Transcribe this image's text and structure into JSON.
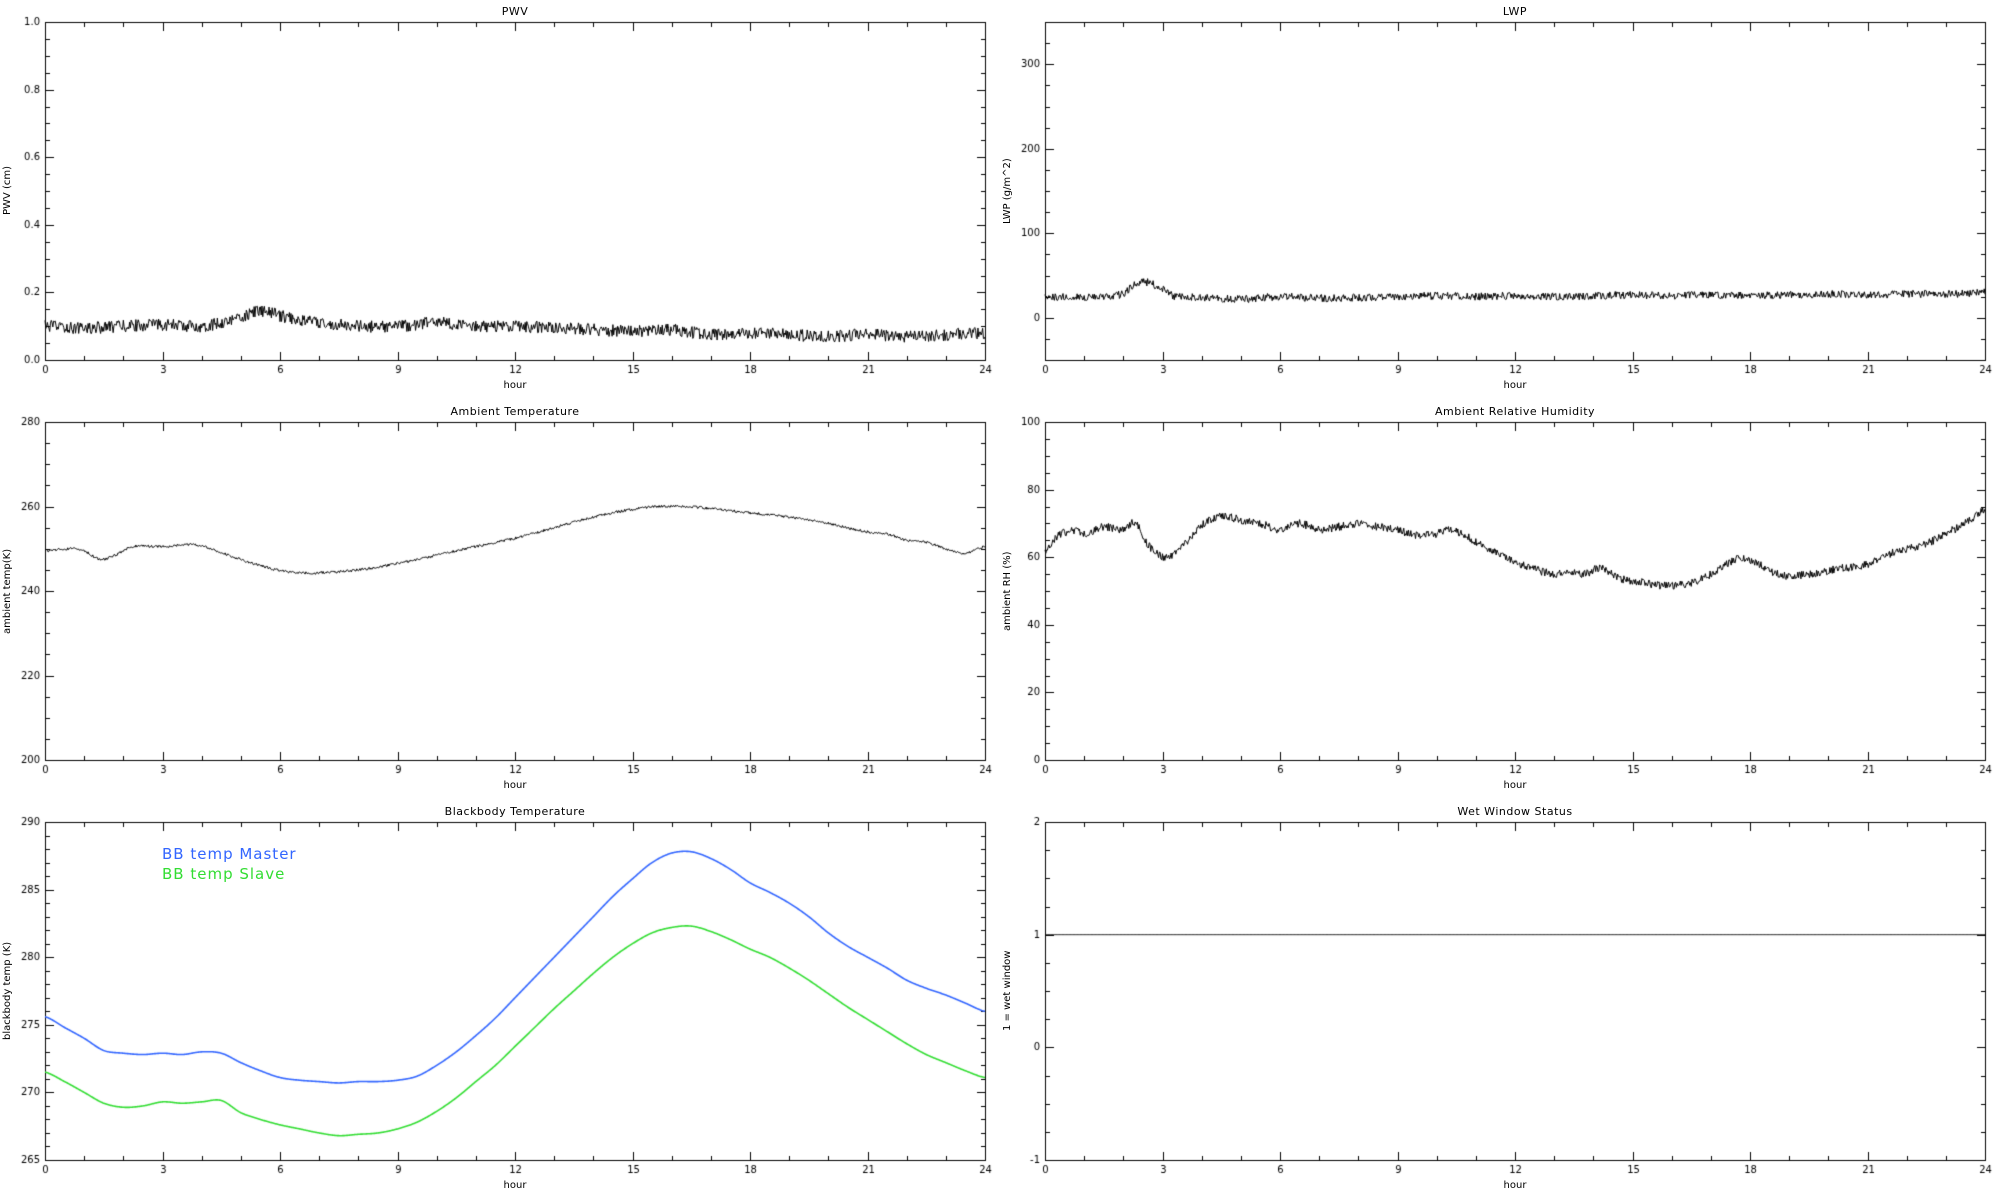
{
  "page": {
    "background": "#ffffff"
  },
  "chart_data": [
    {
      "type": "line",
      "title": "PWV",
      "xlabel": "hour",
      "ylabel": "PWV (cm)",
      "xlim": [
        0,
        24
      ],
      "ylim": [
        0,
        1
      ],
      "x_major": 3,
      "x_minor": 1,
      "y_major": 0.2,
      "y_minor": 0.05,
      "y_decimals": 1,
      "grid": false,
      "legend": false,
      "series": [
        {
          "name": "PWV",
          "color": "#000000",
          "noise": 0.018,
          "x": [
            0,
            1,
            2,
            3,
            4,
            5,
            5.5,
            6,
            7,
            8,
            9,
            10,
            11,
            12,
            13,
            14,
            15,
            16,
            17,
            18,
            19,
            20,
            21,
            22,
            23,
            24
          ],
          "y": [
            0.1,
            0.095,
            0.1,
            0.105,
            0.1,
            0.125,
            0.145,
            0.13,
            0.11,
            0.1,
            0.1,
            0.11,
            0.1,
            0.1,
            0.095,
            0.09,
            0.085,
            0.09,
            0.075,
            0.08,
            0.075,
            0.07,
            0.075,
            0.07,
            0.075,
            0.08
          ]
        }
      ]
    },
    {
      "type": "line",
      "title": "LWP",
      "xlabel": "hour",
      "ylabel": "LWP (g/m^2)",
      "xlim": [
        0,
        24
      ],
      "ylim": [
        -50,
        350
      ],
      "x_major": 3,
      "x_minor": 1,
      "y_major": 100,
      "y_minor": 25,
      "y_decimals": 0,
      "grid": false,
      "legend": false,
      "series": [
        {
          "name": "LWP",
          "color": "#000000",
          "noise": 4.5,
          "x": [
            0,
            1,
            2,
            2.3,
            2.6,
            3,
            3.3,
            4,
            5,
            6,
            7,
            8,
            9,
            10,
            11,
            12,
            13,
            14,
            15,
            16,
            17,
            18,
            19,
            20,
            21,
            22,
            23,
            24
          ],
          "y": [
            25,
            24,
            28,
            40,
            42,
            34,
            25,
            24,
            22,
            25,
            23,
            24,
            25,
            26,
            25,
            26,
            25,
            26,
            27,
            26,
            27,
            26,
            27,
            28,
            27,
            28,
            28,
            30
          ]
        }
      ]
    },
    {
      "type": "line",
      "title": "Ambient Temperature",
      "xlabel": "hour",
      "ylabel": "ambient temp(K)",
      "xlim": [
        0,
        24
      ],
      "ylim": [
        200,
        280
      ],
      "x_major": 3,
      "x_minor": 1,
      "y_major": 20,
      "y_minor": 5,
      "y_decimals": 0,
      "grid": false,
      "legend": false,
      "series": [
        {
          "name": "ambient temperature",
          "color": "#000000",
          "noise": 0.3,
          "x": [
            0,
            0.7,
            1,
            1.4,
            1.8,
            2.2,
            3,
            3.8,
            4.2,
            5,
            5.5,
            6,
            6.5,
            7,
            8,
            9,
            10,
            11,
            12,
            13,
            14,
            15,
            15.7,
            16.3,
            17,
            18,
            19,
            20,
            21,
            21.5,
            22,
            22.5,
            23,
            23.5,
            24
          ],
          "y": [
            249.5,
            250,
            249.5,
            247.5,
            248.5,
            250.5,
            250.5,
            251,
            250,
            247.5,
            246,
            244.8,
            244.3,
            244.3,
            245,
            246.5,
            248.5,
            250.5,
            252.5,
            255,
            257.5,
            259.3,
            260,
            260,
            259.5,
            258.5,
            257.5,
            256,
            254,
            253.5,
            252,
            251.5,
            250,
            249,
            250.5
          ]
        }
      ]
    },
    {
      "type": "line",
      "title": "Ambient Relative Humidity",
      "xlabel": "hour",
      "ylabel": "ambient RH (%)",
      "xlim": [
        0,
        24
      ],
      "ylim": [
        0,
        100
      ],
      "x_major": 3,
      "x_minor": 1,
      "y_major": 20,
      "y_minor": 5,
      "y_decimals": 0,
      "grid": false,
      "legend": false,
      "series": [
        {
          "name": "ambient RH",
          "color": "#000000",
          "noise": 1.2,
          "x": [
            0,
            0.3,
            0.7,
            1,
            1.5,
            2,
            2.3,
            2.6,
            3,
            3.4,
            3.8,
            4.2,
            4.6,
            5,
            5.5,
            6,
            6.5,
            7,
            7.5,
            8,
            8.5,
            9,
            9.5,
            10,
            10.4,
            10.8,
            11.2,
            11.6,
            12,
            12.5,
            13,
            13.4,
            13.8,
            14.2,
            14.6,
            15,
            15.5,
            16,
            16.5,
            17,
            17.4,
            17.8,
            18.2,
            18.6,
            19,
            19.5,
            20,
            20.5,
            21,
            21.4,
            21.8,
            22.2,
            22.6,
            23,
            23.5,
            24
          ],
          "y": [
            62,
            66,
            68,
            67,
            69,
            68,
            70,
            64,
            60,
            62,
            67,
            71,
            72,
            71,
            70,
            68,
            70,
            68,
            69,
            70,
            69,
            68,
            66.5,
            67,
            68,
            66,
            63,
            61,
            58.5,
            56.5,
            55,
            56,
            55,
            57,
            54,
            53,
            52,
            51.5,
            52.5,
            55,
            58,
            60,
            58,
            55.5,
            54.5,
            55,
            56,
            57,
            58,
            60,
            62,
            63,
            64.5,
            67,
            70,
            74
          ]
        }
      ]
    },
    {
      "type": "line",
      "title": "Blackbody Temperature",
      "xlabel": "hour",
      "ylabel": "blackbody temp (K)",
      "xlim": [
        0,
        24
      ],
      "ylim": [
        265,
        290
      ],
      "x_major": 3,
      "x_minor": 1,
      "y_major": 5,
      "y_minor": 1,
      "y_decimals": 0,
      "grid": false,
      "legend": true,
      "x": [
        0,
        0.5,
        1,
        1.5,
        2,
        2.5,
        3,
        3.5,
        4,
        4.5,
        5,
        5.5,
        6,
        6.5,
        7,
        7.5,
        8,
        8.5,
        9,
        9.5,
        10,
        10.5,
        11,
        11.5,
        12,
        12.5,
        13,
        13.5,
        14,
        14.5,
        15,
        15.5,
        16,
        16.5,
        17,
        17.5,
        18,
        18.5,
        19,
        19.5,
        20,
        20.5,
        21,
        21.5,
        22,
        22.5,
        23,
        23.5,
        24
      ],
      "series": [
        {
          "name": "BB temp Master",
          "color": "#3366ff",
          "noise": 0,
          "width": 1.6,
          "y": [
            275.6,
            274.8,
            274.0,
            273.1,
            272.9,
            272.8,
            272.9,
            272.8,
            273.0,
            272.9,
            272.2,
            271.6,
            271.1,
            270.9,
            270.8,
            270.7,
            270.8,
            270.8,
            270.9,
            271.2,
            272.0,
            273.0,
            274.2,
            275.5,
            277.0,
            278.5,
            280.0,
            281.5,
            283.0,
            284.5,
            285.8,
            287.0,
            287.7,
            287.8,
            287.3,
            286.5,
            285.5,
            284.8,
            284.0,
            283.0,
            281.8,
            280.8,
            280.0,
            279.2,
            278.3,
            277.7,
            277.2,
            276.6,
            276.0
          ]
        },
        {
          "name": "BB temp Slave",
          "color": "#33dd33",
          "noise": 0,
          "width": 1.6,
          "y": [
            271.5,
            270.8,
            270.0,
            269.2,
            268.9,
            269.0,
            269.3,
            269.2,
            269.3,
            269.4,
            268.5,
            268.0,
            267.6,
            267.3,
            267.0,
            266.8,
            266.9,
            267.0,
            267.3,
            267.8,
            268.6,
            269.6,
            270.8,
            272.0,
            273.4,
            274.8,
            276.2,
            277.5,
            278.8,
            280.0,
            281.0,
            281.8,
            282.2,
            282.3,
            281.9,
            281.3,
            280.6,
            280.0,
            279.2,
            278.3,
            277.3,
            276.3,
            275.4,
            274.5,
            273.6,
            272.8,
            272.2,
            271.6,
            271.1
          ]
        }
      ]
    },
    {
      "type": "line",
      "title": "Wet Window Status",
      "xlabel": "hour",
      "ylabel": "1 = wet window",
      "xlim": [
        0,
        24
      ],
      "ylim": [
        -1,
        2
      ],
      "x_major": 3,
      "x_minor": 1,
      "y_major": 1,
      "y_minor": 0.25,
      "y_decimals": 0,
      "grid": false,
      "legend": false,
      "series": [
        {
          "name": "wet window flag",
          "color": "#000000",
          "noise": 0,
          "x": [
            0,
            24
          ],
          "y": [
            1,
            1
          ]
        }
      ]
    }
  ]
}
